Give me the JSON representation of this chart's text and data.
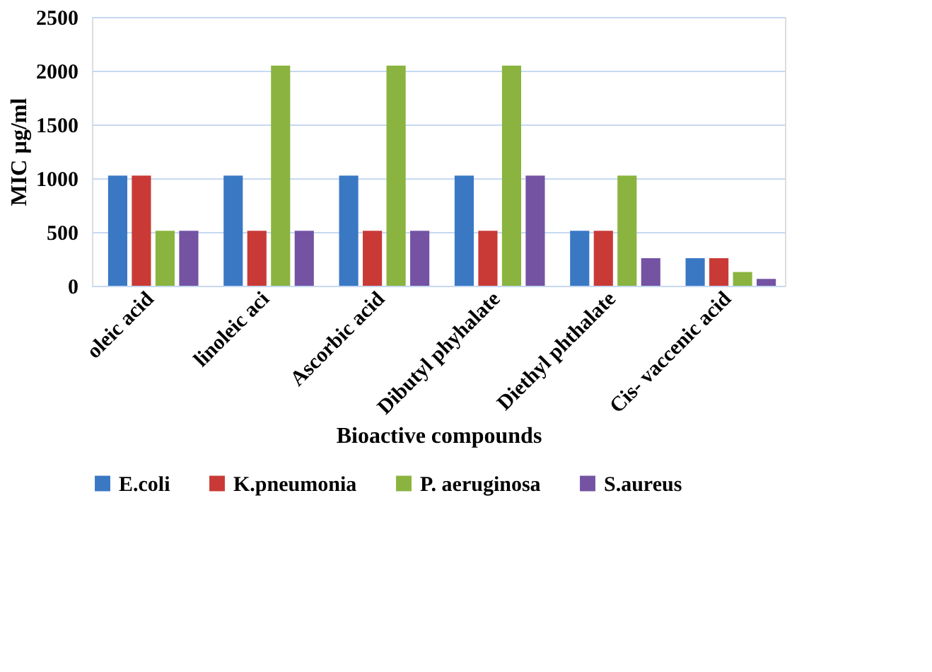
{
  "chart_data": {
    "type": "bar",
    "xlabel": "Bioactive compounds",
    "ylabel": "MIC µg/ml",
    "categories": [
      "oleic acid",
      "linoleic aci",
      "Ascorbic acid",
      "Dibutyl phyhalate",
      "Diethyl phthalate",
      "Cis- vaccenic acid"
    ],
    "series": [
      {
        "name": "E.coli",
        "color": "#3a78c4",
        "values": [
          1024,
          1024,
          1024,
          1024,
          512,
          256
        ]
      },
      {
        "name": "K.pneumonia",
        "color": "#c93a37",
        "values": [
          1024,
          512,
          512,
          512,
          512,
          256
        ]
      },
      {
        "name": "P. aeruginosa",
        "color": "#8ab43f",
        "values": [
          512,
          2048,
          2048,
          2048,
          1024,
          128
        ]
      },
      {
        "name": "S.aureus",
        "color": "#7453a3",
        "values": [
          512,
          512,
          512,
          1024,
          256,
          64
        ]
      }
    ],
    "ylim": [
      0,
      2500
    ],
    "yticks": [
      0,
      500,
      1000,
      1500,
      2000,
      2500
    ],
    "grid": "y",
    "legend": "bottom"
  }
}
